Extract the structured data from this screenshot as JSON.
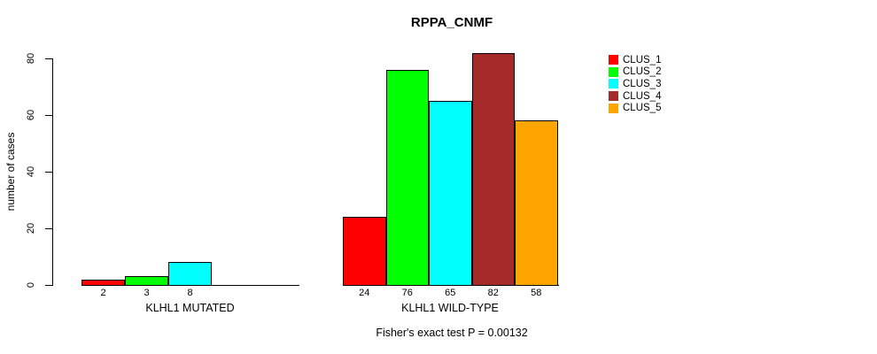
{
  "chart_data": {
    "type": "bar",
    "title": "RPPA_CNMF",
    "ylabel": "number of cases",
    "xlabel": "",
    "ylim": [
      0,
      80
    ],
    "yticks": [
      0,
      20,
      40,
      60,
      80
    ],
    "grid": false,
    "annotation": "Fisher's exact test P = 0.00132",
    "legend": {
      "position": "right",
      "entries": [
        {
          "label": "CLUS_1",
          "color": "#FF0000"
        },
        {
          "label": "CLUS_2",
          "color": "#00FF00"
        },
        {
          "label": "CLUS_3",
          "color": "#00FFFF"
        },
        {
          "label": "CLUS_4",
          "color": "#A52A2A"
        },
        {
          "label": "CLUS_5",
          "color": "#FFA500"
        }
      ]
    },
    "groups": [
      {
        "label": "KLHL1 MUTATED",
        "bars": [
          {
            "cluster": "CLUS_1",
            "value": 2,
            "value_label": "2",
            "color": "#FF0000"
          },
          {
            "cluster": "CLUS_2",
            "value": 3,
            "value_label": "3",
            "color": "#00FF00"
          },
          {
            "cluster": "CLUS_3",
            "value": 8,
            "value_label": "8",
            "color": "#00FFFF"
          },
          {
            "cluster": "CLUS_4",
            "value": 0,
            "value_label": "",
            "color": "#A52A2A"
          },
          {
            "cluster": "CLUS_5",
            "value": 0,
            "value_label": "",
            "color": "#FFA500"
          }
        ]
      },
      {
        "label": "KLHL1 WILD-TYPE",
        "bars": [
          {
            "cluster": "CLUS_1",
            "value": 24,
            "value_label": "24",
            "color": "#FF0000"
          },
          {
            "cluster": "CLUS_2",
            "value": 76,
            "value_label": "76",
            "color": "#00FF00"
          },
          {
            "cluster": "CLUS_3",
            "value": 65,
            "value_label": "65",
            "color": "#00FFFF"
          },
          {
            "cluster": "CLUS_4",
            "value": 82,
            "value_label": "82",
            "color": "#A52A2A"
          },
          {
            "cluster": "CLUS_5",
            "value": 58,
            "value_label": "58",
            "color": "#FFA500"
          }
        ]
      }
    ]
  },
  "colors": {
    "background": "#FFFFFF",
    "axis": "#000000",
    "text": "#000000",
    "bar_border": "#000000"
  }
}
